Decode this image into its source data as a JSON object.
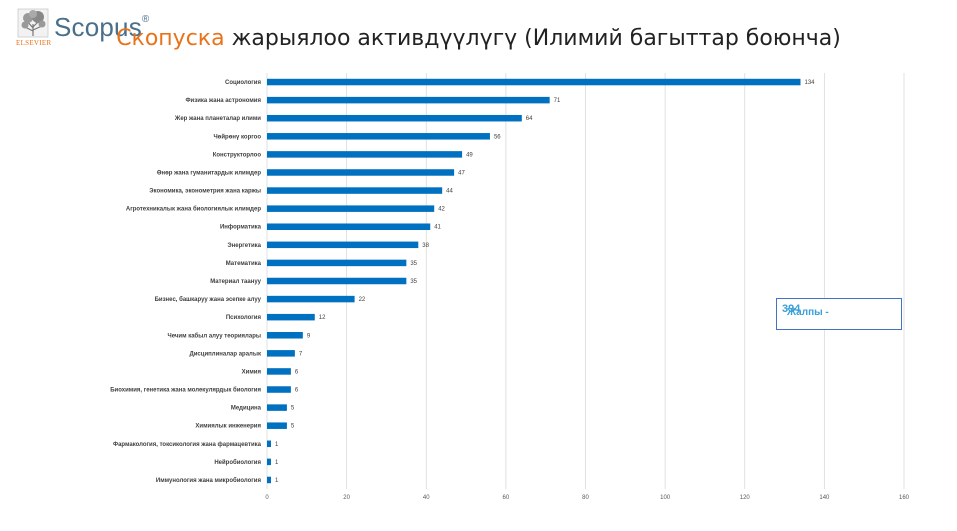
{
  "logo": {
    "brand": "Scopus",
    "registered": "®",
    "publisher": "ELSEVIER"
  },
  "header": {
    "title_accent": "Скопуска",
    "title_rest": " жарыялоо активдүүлүгү (Илимий багыттар боюнча)"
  },
  "total": {
    "label": "Жалпы - ",
    "value": "394"
  },
  "chart_data": {
    "type": "bar",
    "orientation": "horizontal",
    "categories": [
      "Социология",
      "Физика жана астрономия",
      "Жер жана планеталар илими",
      "Чөйрөнү коргоо",
      "Конструкторлоо",
      "Өнөр жана гуманитардык илимдер",
      "Экономика, эконометрия жана каржы",
      "Агротехникалык жана биологиялык илимдер",
      "Информатика",
      "Энергетика",
      "Математика",
      "Материал таануу",
      "Бизнес, башкаруу жана эсепке алуу",
      "Психология",
      "Чечим кабыл алуу теориялары",
      "Дисциплиналар аралык",
      "Химия",
      "Биохимия, генетика жана молекулярдык биология",
      "Медицина",
      "Химиялык инженерия",
      "Фармакология, токсикология жана фармацевтика",
      "Нейробиология",
      "Иммунология жана микробиология"
    ],
    "values": [
      134,
      71,
      64,
      56,
      49,
      47,
      44,
      42,
      41,
      38,
      35,
      35,
      22,
      12,
      9,
      7,
      6,
      6,
      5,
      5,
      1,
      1,
      1
    ],
    "xlim": [
      0,
      160
    ],
    "xticks": [
      0,
      20,
      40,
      60,
      80,
      100,
      120,
      140,
      160
    ],
    "bar_color": "#0070c0",
    "grid": true,
    "data_labels": true
  }
}
